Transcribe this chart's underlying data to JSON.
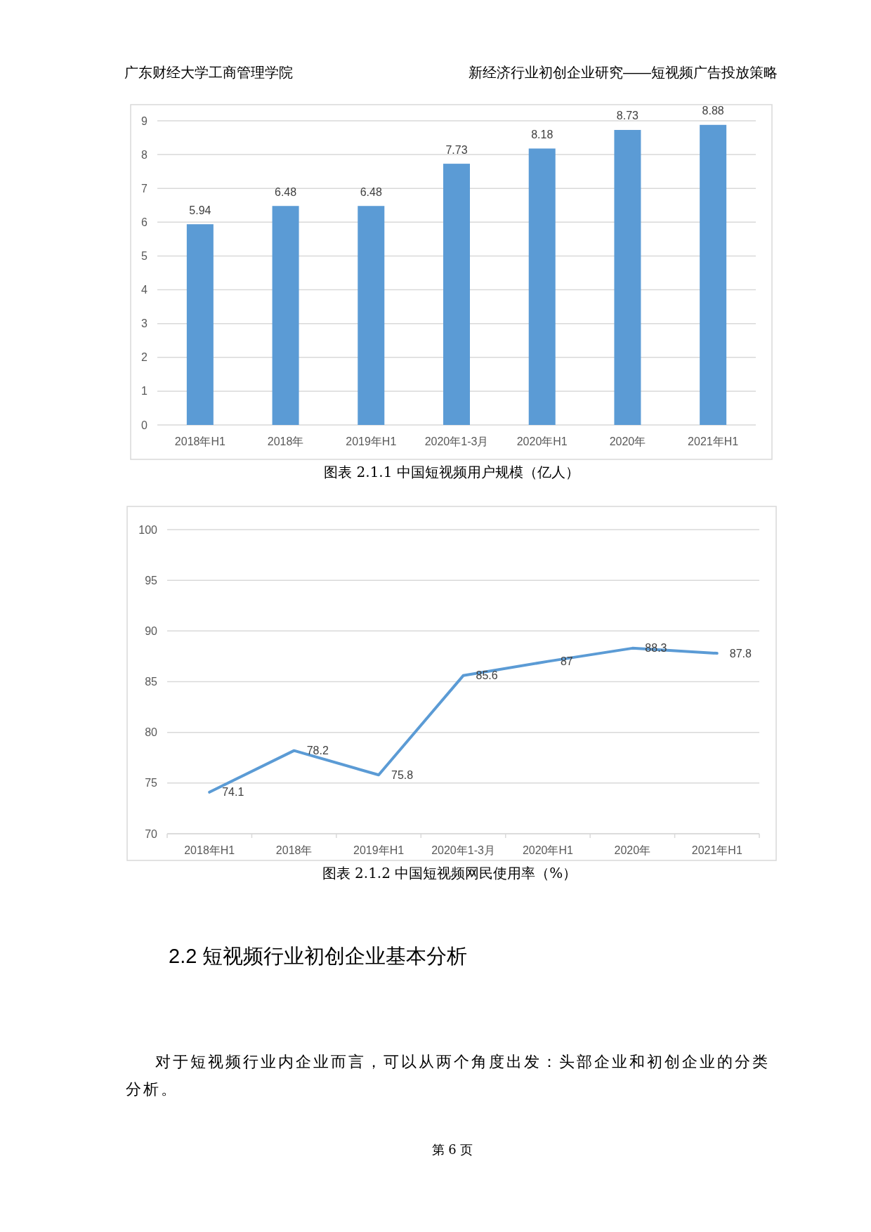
{
  "chart_data": [
    {
      "type": "bar",
      "title": "图表 2.1.1 中国短视频用户规模（亿人）",
      "categories": [
        "2018年H1",
        "2018年",
        "2019年H1",
        "2020年1-3月",
        "2020年H1",
        "2020年",
        "2021年H1"
      ],
      "values": [
        5.94,
        6.48,
        6.48,
        7.73,
        8.18,
        8.73,
        8.88
      ],
      "color": "#5b9bd5",
      "ylim": [
        0,
        9
      ],
      "yticks": [
        0,
        1,
        2,
        3,
        4,
        5,
        6,
        7,
        8,
        9
      ],
      "grid": "y",
      "data_labels": true,
      "annotations": [
        "广东财经大学工商管理学院",
        "新经济行业初创企业研究——短视频广告投放策略"
      ]
    },
    {
      "type": "line",
      "title": "图表 2.1.2 中国短视频网民使用率（%）",
      "categories": [
        "2018年H1",
        "2018年",
        "2019年H1",
        "2020年1-3月",
        "2020年H1",
        "2020年",
        "2021年H1"
      ],
      "values": [
        74.1,
        78.2,
        75.8,
        85.6,
        87,
        88.3,
        87.8
      ],
      "color": "#5b9bd5",
      "ylim": [
        70,
        100
      ],
      "yticks": [
        70,
        75,
        80,
        85,
        90,
        95,
        100
      ],
      "grid": "y",
      "data_labels": true,
      "marker": "none",
      "line_style": "solid",
      "annotations": [
        "2.2 短视频行业初创企业基本分析",
        "对于短视频行业内企业而言，可以从两个角度出发：头部企业和初创企业的分类分析。",
        "第 6 页"
      ]
    }
  ]
}
